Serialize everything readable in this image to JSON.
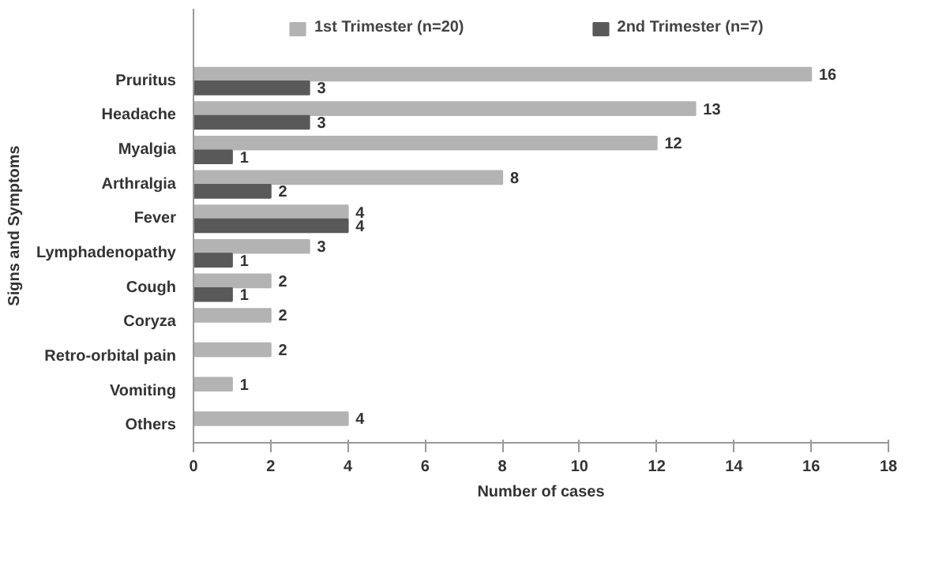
{
  "chart_data": {
    "type": "bar",
    "orientation": "horizontal",
    "xlabel": "Number of cases",
    "ylabel": "Signs and Symptoms",
    "categories": [
      "Pruritus",
      "Headache",
      "Myalgia",
      "Arthralgia",
      "Fever",
      "Lymphadenopathy",
      "Cough",
      "Coryza",
      "Retro-orbital pain",
      "Vomiting",
      "Others"
    ],
    "series": [
      {
        "name": "1st Trimester (n=20)",
        "color": "#b3b3b3",
        "values": [
          16,
          13,
          12,
          8,
          4,
          3,
          2,
          2,
          2,
          1,
          4
        ]
      },
      {
        "name": "2nd Trimester (n=7)",
        "color": "#595959",
        "values": [
          3,
          3,
          1,
          2,
          4,
          1,
          1,
          null,
          null,
          null,
          null
        ]
      }
    ],
    "xlim": [
      0,
      18
    ],
    "xticks": [
      0,
      2,
      4,
      6,
      8,
      10,
      12,
      14,
      16,
      18
    ],
    "data_labels": true,
    "grid": false,
    "legend": "top"
  }
}
